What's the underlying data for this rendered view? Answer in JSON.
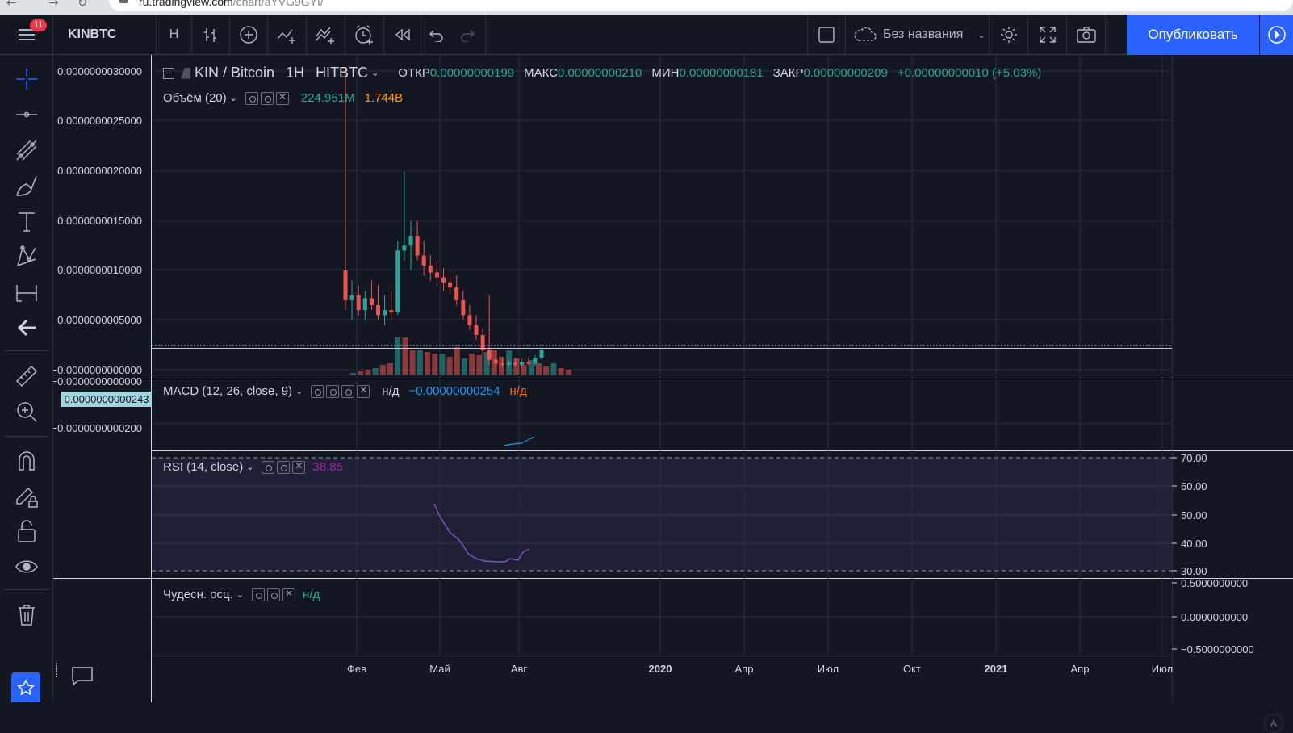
{
  "browser": {
    "url_host": "ru.tradingview.com",
    "url_path": "/chart/aYVG9GYI/"
  },
  "topbar": {
    "notifications_count": "11",
    "symbol": "KINBTC",
    "interval": "H",
    "layout_name": "Без названия",
    "publish_label": "Опубликовать",
    "icons": [
      "menu-icon",
      "bars-style-icon",
      "add-compare-icon",
      "indicators-icon",
      "financials-icon",
      "alert-icon",
      "replay-icon",
      "undo-icon",
      "redo-icon",
      "layout-icon",
      "cloud-icon",
      "settings-icon",
      "fullscreen-icon",
      "camera-icon",
      "play-icon"
    ]
  },
  "left_toolbar": [
    "crosshair-icon",
    "horizontal-line-icon",
    "trend-lines-icon",
    "brush-icon",
    "text-icon",
    "pattern-icon",
    "measure-icon",
    "back-arrow-icon",
    "ruler-icon",
    "zoom-in-icon",
    "magnet-icon",
    "lock-drawing-icon",
    "unlock-icon",
    "eye-icon",
    "trash-icon"
  ],
  "main_legend": {
    "pair": "KIN / Bitcoin",
    "tf": "1H",
    "exchange": "HITBTC",
    "open_lbl": "ОТКР",
    "open": "0.00000000199",
    "high_lbl": "МАКС",
    "high": "0.00000000210",
    "low_lbl": "МИН",
    "low": "0.00000000181",
    "close_lbl": "ЗАКР",
    "close": "0.00000000209",
    "change": "+0.00000000010 (+5.03%)"
  },
  "volume_legend": {
    "name": "Объём (20)",
    "v1": "224.951M",
    "v2": "1.744B"
  },
  "macd_legend": {
    "name": "MACD (12, 26, close, 9)",
    "v1": "н/д",
    "v2": "−0.00000000254",
    "v3": "н/д"
  },
  "rsi_legend": {
    "name": "RSI (14, close)",
    "value": "38.85"
  },
  "ao_legend": {
    "name": "Чудесн. осц.",
    "value": "н/д"
  },
  "price_axis": [
    "0.0000000030000",
    "0.0000000025000",
    "0.0000000020000",
    "0.0000000015000",
    "0.0000000010000",
    "0.0000000005000",
    "−0.0000000000000"
  ],
  "current_price_label": "0.0000000000243",
  "macd_axis": [
    "−0.0000000000000",
    "−0.0000000000200"
  ],
  "rsi_axis": [
    "70.00",
    "60.00",
    "50.00",
    "40.00",
    "30.00"
  ],
  "ao_axis": [
    "0.5000000000",
    "0.0000000000",
    "−0.5000000000"
  ],
  "time_axis": [
    "Фев",
    "Май",
    "Авг",
    "2020",
    "Апр",
    "Июл",
    "Окт",
    "2021",
    "Апр",
    "Июл"
  ],
  "auto_label": "A",
  "colors": {
    "up": "#26a69a",
    "down": "#ef5350",
    "rsi": "#7e57c2",
    "macd": "#2196f3",
    "publish": "#2962ff"
  }
}
